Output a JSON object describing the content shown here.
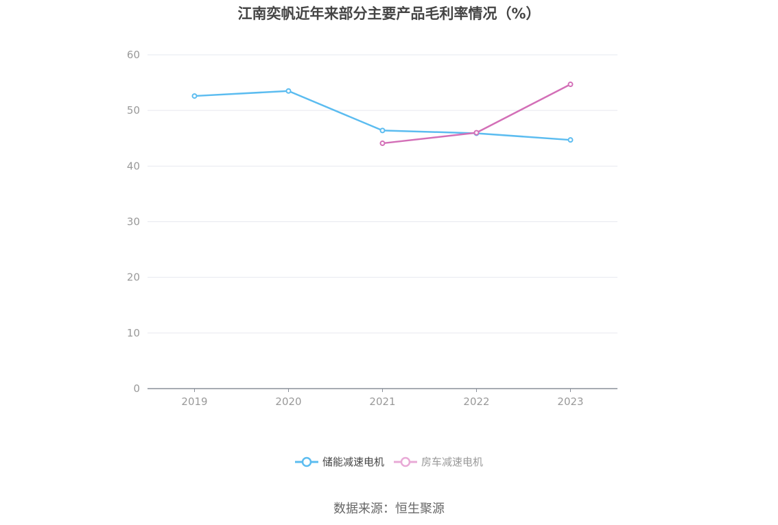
{
  "chart_data": {
    "type": "line",
    "title": "江南奕帆近年来部分主要产品毛利率情况（%）",
    "categories": [
      "2019",
      "2020",
      "2021",
      "2022",
      "2023"
    ],
    "ylim": [
      0,
      60
    ],
    "yticks": [
      0,
      10,
      20,
      30,
      40,
      50,
      60
    ],
    "grid": true,
    "legend_position": "bottom-center",
    "series": [
      {
        "name": "储能减速电机",
        "color": "#5bbcf0",
        "values": [
          52.6,
          53.5,
          46.4,
          45.9,
          44.7
        ]
      },
      {
        "name": "房车减速电机",
        "color": "#d36fb7",
        "legend_color": "#e8a9d6",
        "values": [
          null,
          null,
          44.1,
          46.0,
          54.7
        ]
      }
    ]
  },
  "source": "数据来源：恒生聚源"
}
